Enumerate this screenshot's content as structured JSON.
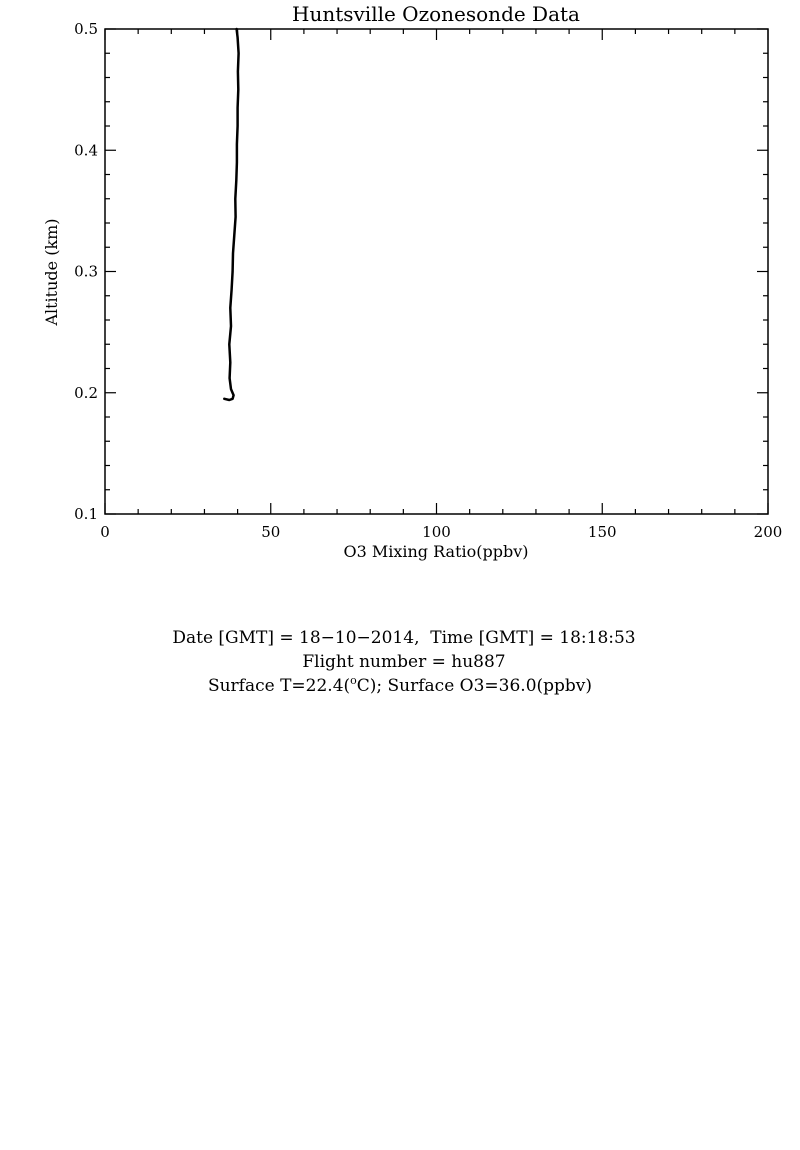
{
  "chart_data": {
    "type": "line",
    "title": "Huntsville Ozonesonde Data",
    "xlabel": "O3 Mixing Ratio(ppbv)",
    "ylabel": "Altitude (km)",
    "xlim": [
      0,
      200
    ],
    "ylim": [
      0.1,
      0.5
    ],
    "xticks": [
      0,
      50,
      100,
      150,
      200
    ],
    "xtick_labels": [
      "0",
      "50",
      "100",
      "150",
      "200"
    ],
    "yticks": [
      0.1,
      0.2,
      0.3,
      0.4,
      0.5
    ],
    "ytick_labels": [
      "0.1",
      "0.2",
      "0.3",
      "0.4",
      "0.5"
    ],
    "x_minor_step": 10,
    "y_minor_step": 0.02,
    "series": [
      {
        "color": "#000000",
        "points": [
          [
            36.0,
            0.195
          ],
          [
            37.5,
            0.194
          ],
          [
            38.5,
            0.195
          ],
          [
            38.8,
            0.198
          ],
          [
            38.0,
            0.203
          ],
          [
            37.6,
            0.212
          ],
          [
            37.8,
            0.225
          ],
          [
            37.5,
            0.24
          ],
          [
            38.0,
            0.255
          ],
          [
            37.8,
            0.27
          ],
          [
            38.2,
            0.285
          ],
          [
            38.5,
            0.3
          ],
          [
            38.6,
            0.315
          ],
          [
            39.0,
            0.33
          ],
          [
            39.4,
            0.345
          ],
          [
            39.3,
            0.36
          ],
          [
            39.6,
            0.375
          ],
          [
            39.8,
            0.39
          ],
          [
            39.8,
            0.405
          ],
          [
            40.0,
            0.42
          ],
          [
            40.0,
            0.435
          ],
          [
            40.2,
            0.45
          ],
          [
            40.1,
            0.465
          ],
          [
            40.3,
            0.48
          ],
          [
            40.0,
            0.493
          ],
          [
            39.7,
            0.5
          ]
        ]
      }
    ]
  },
  "info": {
    "line1": "Date [GMT] = 18−10−2014,  Time [GMT] = 18:18:53",
    "line2": "Flight number = hu887",
    "line3_prefix": "Surface T=22.4(",
    "line3_sup": "o",
    "line3_suffix": "C); Surface O3=36.0(ppbv)"
  }
}
